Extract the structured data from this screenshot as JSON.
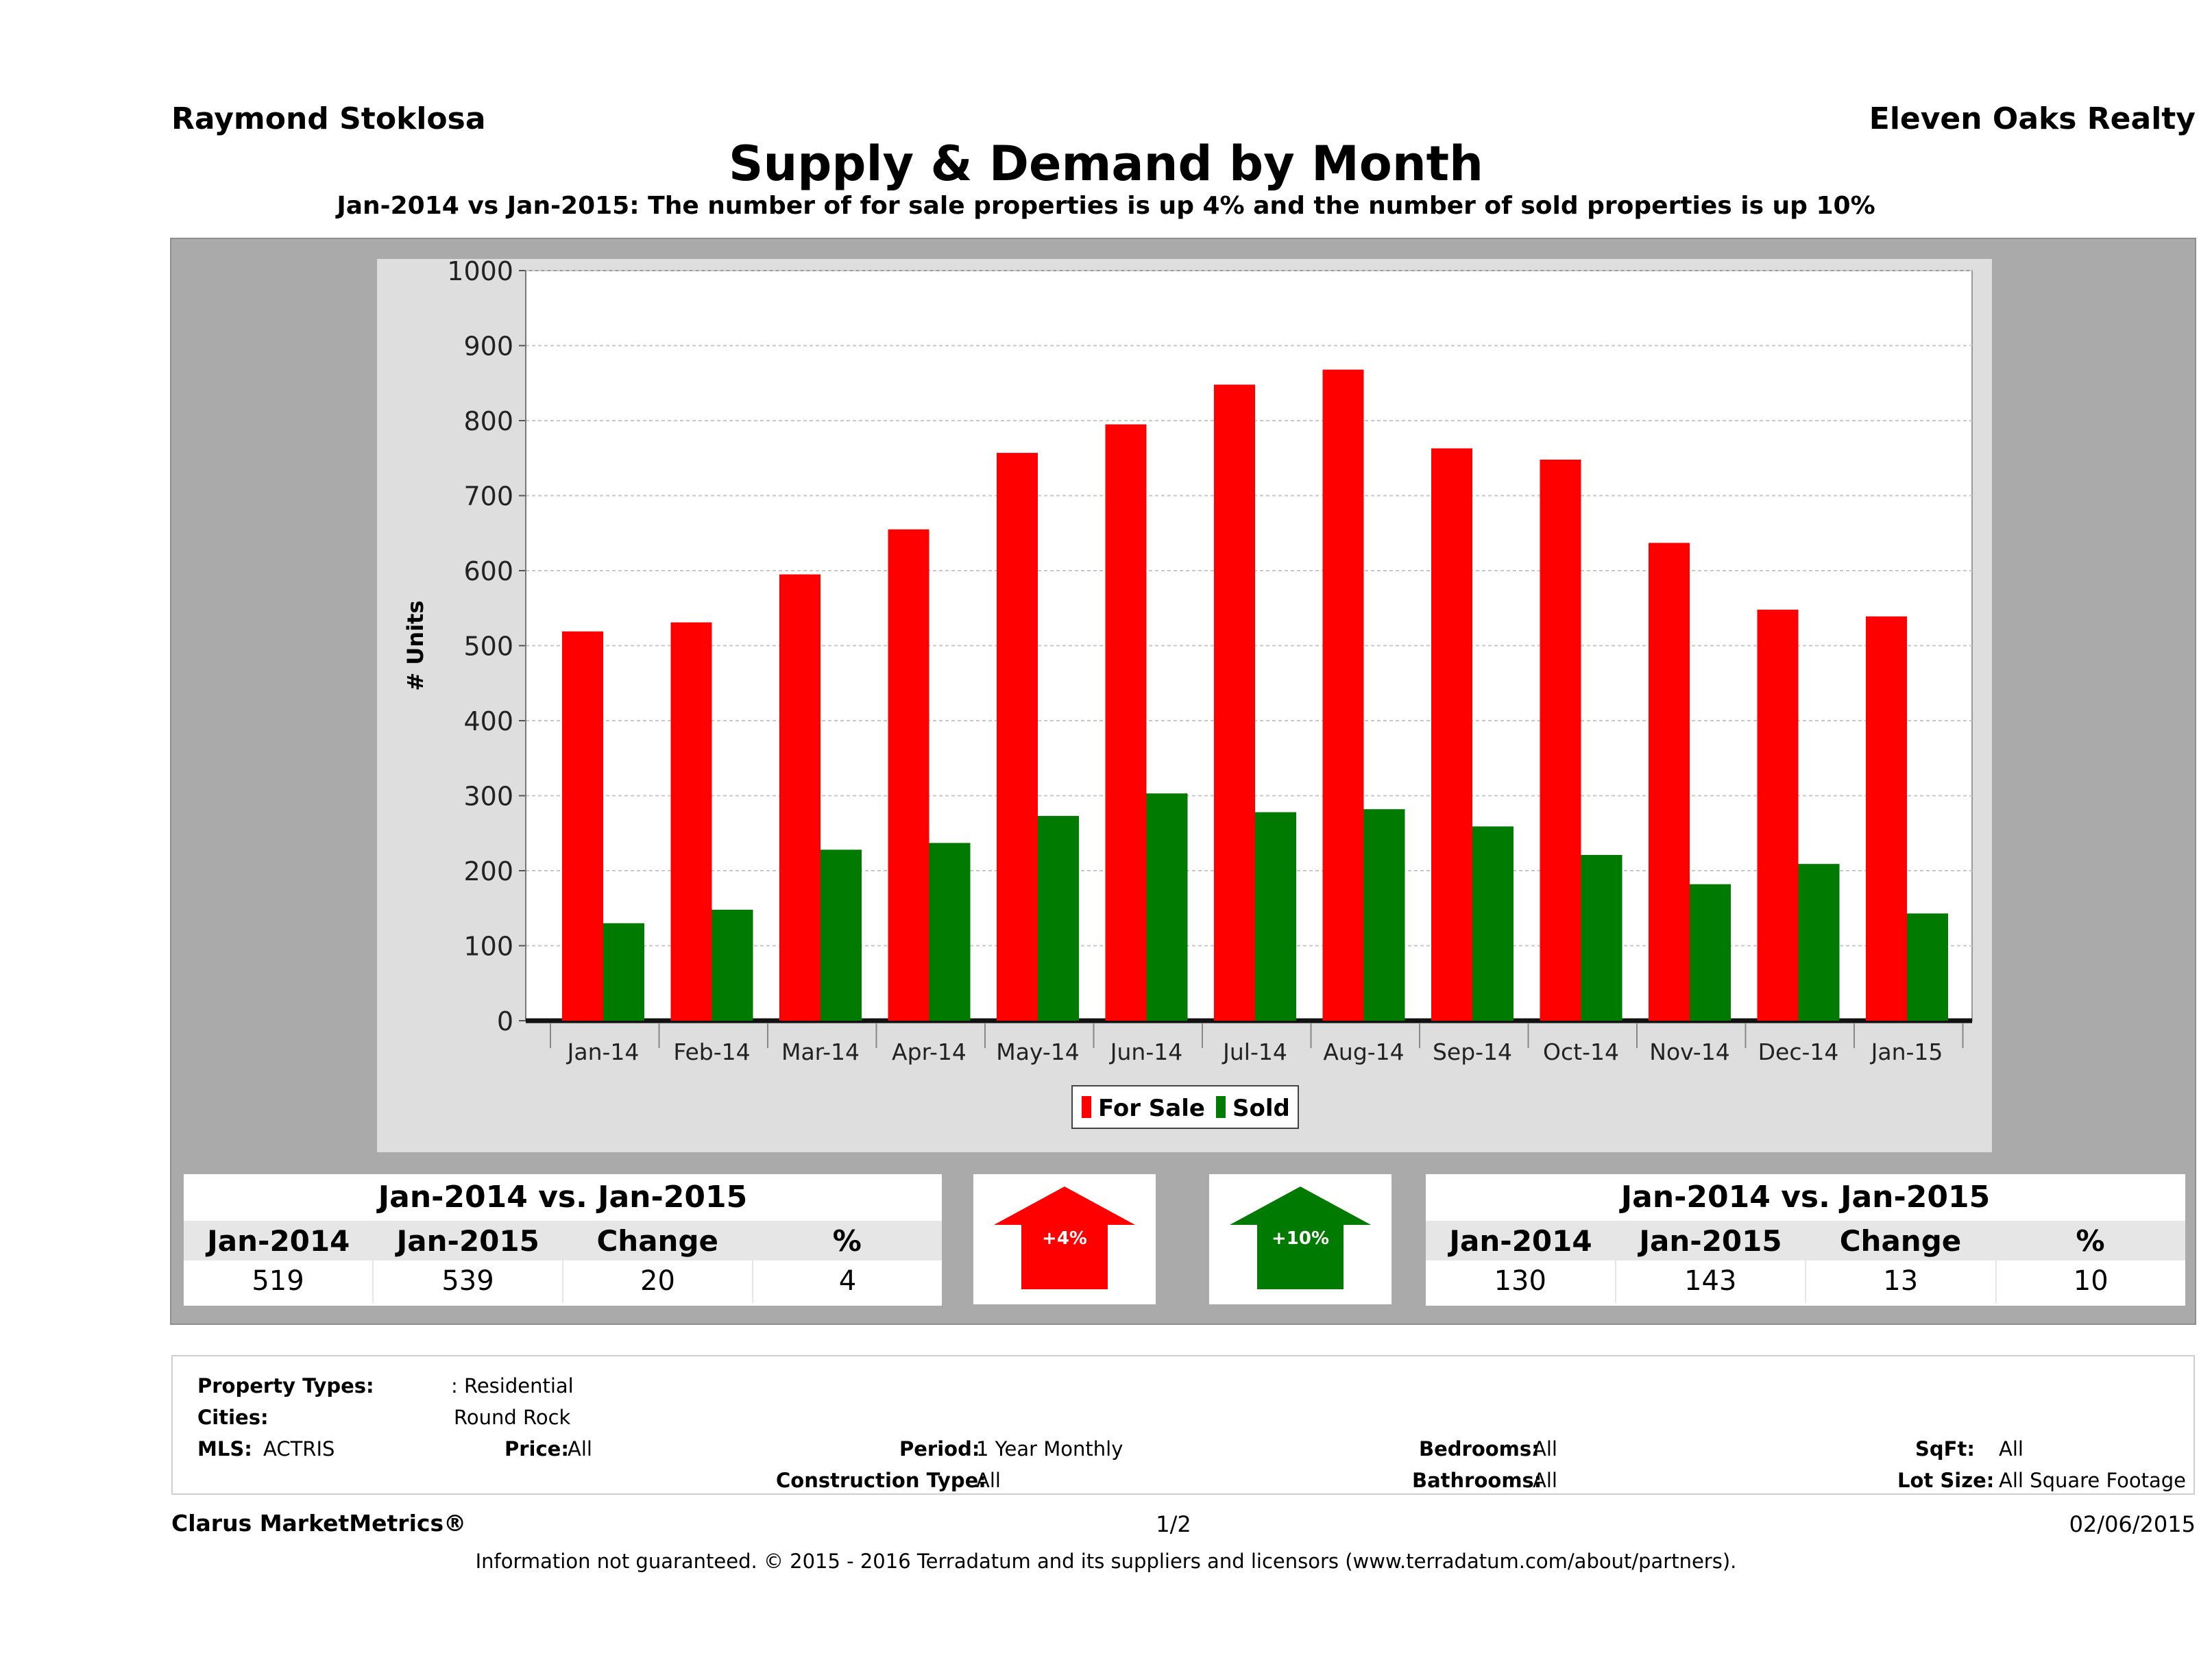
{
  "header": {
    "agent": "Raymond Stoklosa",
    "brokerage": "Eleven Oaks Realty",
    "title": "Supply & Demand by Month",
    "subtitle": "Jan-2014 vs Jan-2015: The number of for sale properties is up 4% and the number of sold properties is up 10%"
  },
  "colors": {
    "for_sale": "#ff0000",
    "sold": "#007a00",
    "panel": "#aaaaaa",
    "plot_bg": "#ffffff"
  },
  "chart_data": {
    "type": "bar",
    "title": "Supply & Demand by Month",
    "xlabel": "",
    "ylabel": "# Units",
    "ylim": [
      0,
      1000
    ],
    "yticks": [
      0,
      100,
      200,
      300,
      400,
      500,
      600,
      700,
      800,
      900,
      1000
    ],
    "categories": [
      "Jan-14",
      "Feb-14",
      "Mar-14",
      "Apr-14",
      "May-14",
      "Jun-14",
      "Jul-14",
      "Aug-14",
      "Sep-14",
      "Oct-14",
      "Nov-14",
      "Dec-14",
      "Jan-15"
    ],
    "series": [
      {
        "name": "For Sale",
        "color": "#ff0000",
        "values": [
          519,
          531,
          595,
          655,
          757,
          795,
          848,
          868,
          763,
          748,
          637,
          548,
          539
        ]
      },
      {
        "name": "Sold",
        "color": "#007a00",
        "values": [
          130,
          148,
          228,
          237,
          273,
          303,
          278,
          282,
          259,
          221,
          182,
          209,
          143
        ]
      }
    ],
    "grid": true,
    "legend": "bottom-center"
  },
  "summary_left": {
    "heading": "Jan-2014 vs. Jan-2015",
    "columns": [
      "Jan-2014",
      "Jan-2015",
      "Change",
      "%"
    ],
    "values": [
      "519",
      "539",
      "20",
      "4"
    ]
  },
  "summary_right": {
    "heading": "Jan-2014 vs. Jan-2015",
    "columns": [
      "Jan-2014",
      "Jan-2015",
      "Change",
      "%"
    ],
    "values": [
      "130",
      "143",
      "13",
      "10"
    ]
  },
  "arrows": {
    "for_sale": {
      "label": "+4%",
      "direction": "up",
      "color": "#ff0000"
    },
    "sold": {
      "label": "+10%",
      "direction": "up",
      "color": "#007a00"
    }
  },
  "criteria": {
    "property_types_label": "Property Types:",
    "property_types_value": ": Residential",
    "cities_label": "Cities:",
    "cities_value": "Round Rock",
    "mls_label": "MLS:",
    "mls_value": "ACTRIS",
    "price_label": "Price:",
    "price_value": "All",
    "period_label": "Period:",
    "period_value": "1 Year Monthly",
    "construction_label": "Construction Type:",
    "construction_value": "All",
    "bedrooms_label": "Bedrooms:",
    "bedrooms_value": "All",
    "bathrooms_label": "Bathrooms:",
    "bathrooms_value": "All",
    "sqft_label": "SqFt:",
    "sqft_value": "All",
    "lot_label": "Lot Size:",
    "lot_value": "All Square Footage"
  },
  "footer": {
    "product": "Clarus MarketMetrics®",
    "page": "1/2",
    "date": "02/06/2015",
    "disclaimer": "Information not guaranteed. © 2015 - 2016 Terradatum and its suppliers and licensors (www.terradatum.com/about/partners)."
  }
}
